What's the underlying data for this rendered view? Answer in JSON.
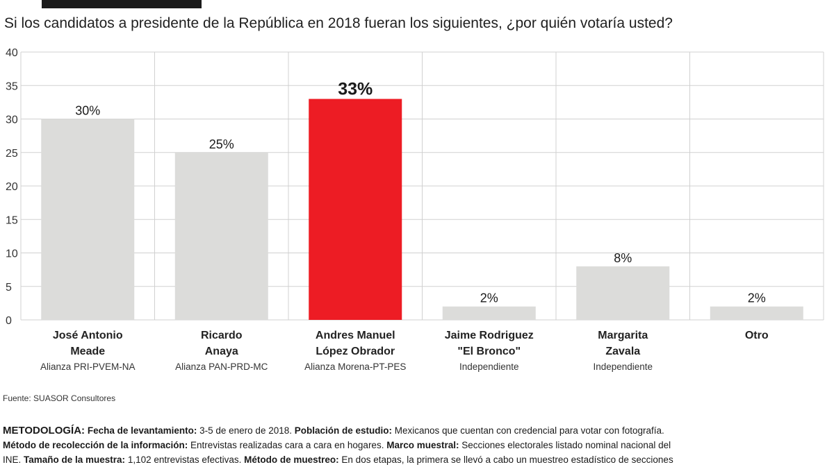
{
  "question": "Si los candidatos a presidente de la República en 2018 fueran los siguientes, ¿por quién votaría usted?",
  "colors": {
    "highlight": "#ed1c24",
    "bar": "#dcdcda",
    "grid": "#d0d0d0"
  },
  "chart_data": {
    "type": "bar",
    "title": "",
    "xlabel": "",
    "ylabel": "",
    "ylim": [
      0,
      40
    ],
    "yticks": [
      0,
      5,
      10,
      15,
      20,
      25,
      30,
      35,
      40
    ],
    "grid": true,
    "categories": [
      {
        "name_line1": "José Antonio",
        "name_line2": "Meade",
        "alliance": "Alianza PRI-PVEM-NA",
        "value": 30,
        "label": "30%",
        "highlight": false
      },
      {
        "name_line1": "Ricardo",
        "name_line2": "Anaya",
        "alliance": "Alianza PAN-PRD-MC",
        "value": 25,
        "label": "25%",
        "highlight": false
      },
      {
        "name_line1": "Andres Manuel",
        "name_line2": "López Obrador",
        "alliance": "Alianza Morena-PT-PES",
        "value": 33,
        "label": "33%",
        "highlight": true
      },
      {
        "name_line1": "Jaime Rodriguez",
        "name_line2": "\"El Bronco\"",
        "alliance": "Independiente",
        "value": 2,
        "label": "2%",
        "highlight": false
      },
      {
        "name_line1": "Margarita",
        "name_line2": "Zavala",
        "alliance": "Independiente",
        "value": 8,
        "label": "8%",
        "highlight": false
      },
      {
        "name_line1": "Otro",
        "name_line2": "",
        "alliance": "",
        "value": 2,
        "label": "2%",
        "highlight": false
      }
    ]
  },
  "source": "Fuente: SUASOR Consultores",
  "methodology": {
    "heading": "METODOLOGÍA:",
    "fecha_label": "Fecha de levantamiento:",
    "fecha_value": " 3-5 de enero de 2018. ",
    "poblacion_label": "Población de estudio:",
    "poblacion_value": " Mexicanos que cuentan con credencial para votar con fotografía.",
    "recoleccion_label": "Método de recolección de la información:",
    "recoleccion_value": " Entrevistas realizadas cara a cara en hogares. ",
    "marco_label": "Marco muestral:",
    "marco_value": " Secciones electorales listado nominal nacional del",
    "line3_prefix": "INE. ",
    "tamano_label": "Tamaño de la muestra:",
    "tamano_value": " 1,102 entrevistas efectivas. ",
    "muestreo_label": "Método de muestreo:",
    "muestreo_value": " En dos etapas, la primera se llevó a cabo un muestreo estadístico de secciones"
  }
}
